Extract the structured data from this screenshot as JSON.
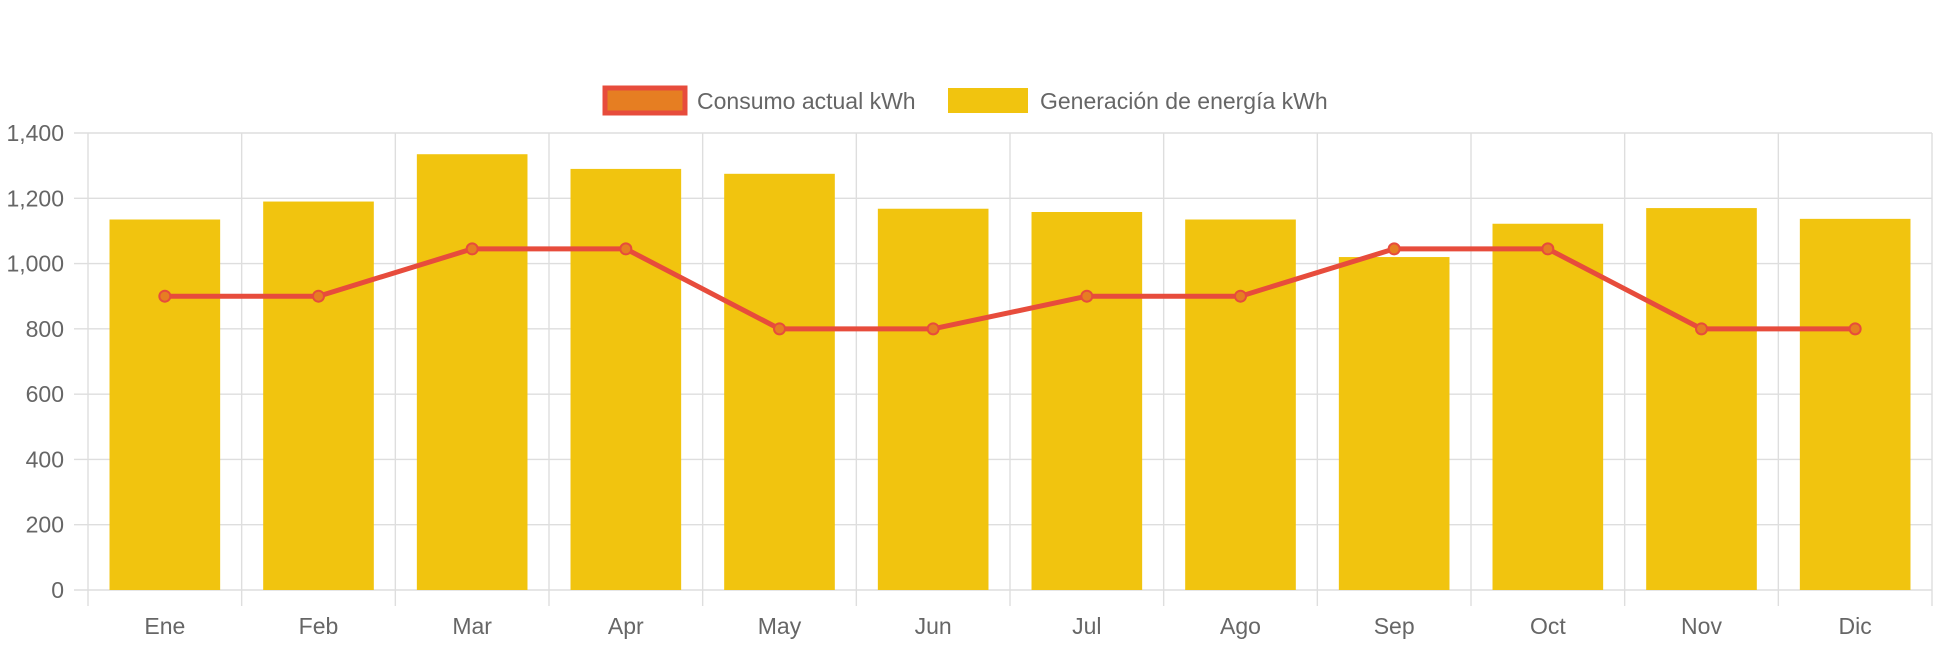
{
  "chart_data": {
    "type": "bar",
    "categories": [
      "Ene",
      "Feb",
      "Mar",
      "Apr",
      "May",
      "Jun",
      "Jul",
      "Ago",
      "Sep",
      "Oct",
      "Nov",
      "Dic"
    ],
    "series": [
      {
        "name": "Consumo actual kWh",
        "kind": "line",
        "color": "#e74c3c",
        "point_fill": "#e67e22",
        "values": [
          900,
          900,
          1045,
          1045,
          800,
          800,
          900,
          900,
          1045,
          1045,
          800,
          800
        ]
      },
      {
        "name": "Generación de energía kWh",
        "kind": "bar",
        "color": "#f1c40f",
        "values": [
          1135,
          1190,
          1335,
          1290,
          1275,
          1168,
          1158,
          1135,
          1020,
          1122,
          1170,
          1137
        ]
      }
    ],
    "ylim": [
      0,
      1400
    ],
    "yticks": [
      0,
      200,
      400,
      600,
      800,
      1000,
      1200,
      1400
    ],
    "ytick_labels": [
      "0",
      "200",
      "400",
      "600",
      "800",
      "1,000",
      "1,200",
      "1,400"
    ],
    "grid": true,
    "legend_position": "top-center",
    "xlabel": "",
    "ylabel": "",
    "title": ""
  }
}
